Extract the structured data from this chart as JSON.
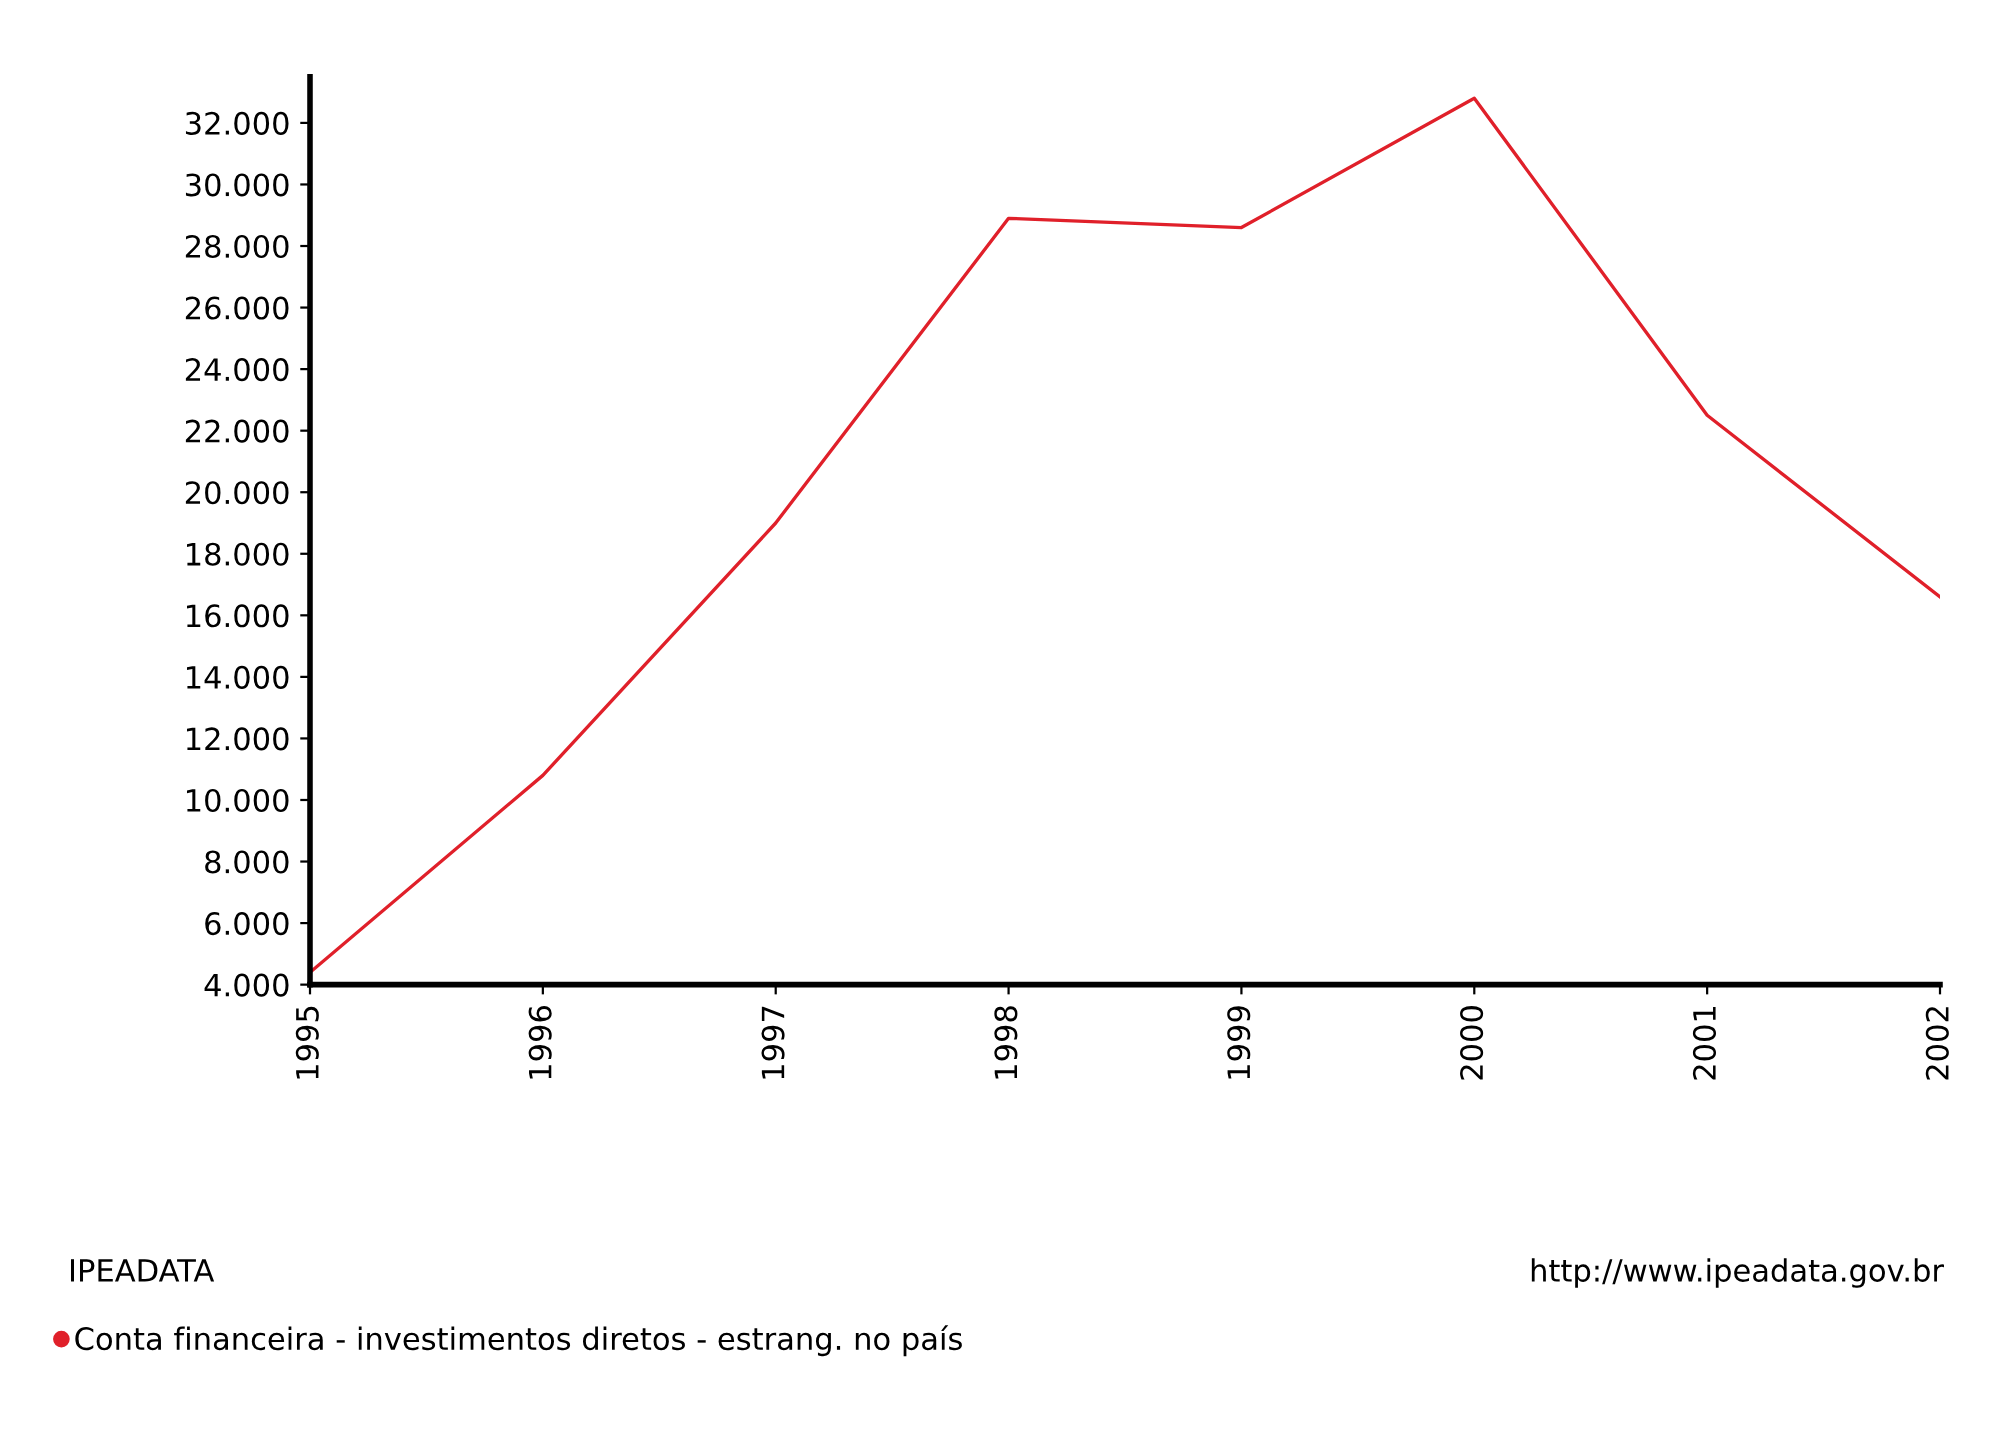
{
  "chart_data": {
    "type": "line",
    "x": [
      1995,
      1996,
      1997,
      1998,
      1999,
      2000,
      2001,
      2002
    ],
    "series": [
      {
        "name": "Conta financeira - investimentos diretos - estrang. no país",
        "color": "#e0202a",
        "values": [
          4400,
          10800,
          19000,
          28900,
          28600,
          32800,
          22500,
          16600
        ]
      }
    ],
    "xlim": [
      1995,
      2002
    ],
    "xticks": [
      1995,
      1996,
      1997,
      1998,
      1999,
      2000,
      2001,
      2002
    ],
    "ylim": [
      4000,
      33500
    ],
    "yticks": [
      {
        "value": 4000,
        "label": "4.000"
      },
      {
        "value": 6000,
        "label": "6.000"
      },
      {
        "value": 8000,
        "label": "8.000"
      },
      {
        "value": 10000,
        "label": "10.000"
      },
      {
        "value": 12000,
        "label": "12.000"
      },
      {
        "value": 14000,
        "label": "14.000"
      },
      {
        "value": 16000,
        "label": "16.000"
      },
      {
        "value": 18000,
        "label": "18.000"
      },
      {
        "value": 20000,
        "label": "20.000"
      },
      {
        "value": 22000,
        "label": "22.000"
      },
      {
        "value": 24000,
        "label": "24.000"
      },
      {
        "value": 26000,
        "label": "26.000"
      },
      {
        "value": 28000,
        "label": "28.000"
      },
      {
        "value": 30000,
        "label": "30.000"
      },
      {
        "value": 32000,
        "label": "32.000"
      }
    ],
    "grid": false,
    "legend": "bottom left",
    "marker": "none",
    "line_style": "solid",
    "annotations": [
      "IPEADATA",
      "http://www.ipeadata.gov.br"
    ]
  }
}
